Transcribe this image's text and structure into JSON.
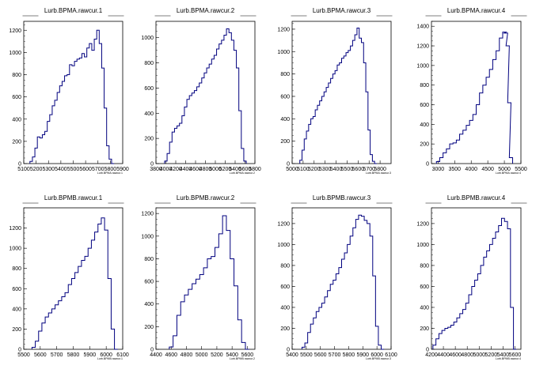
{
  "chart_data": [
    {
      "type": "histogram",
      "title": "Lurb.BPMA.rawcur.1",
      "xlabel": "Lurb.BPMA.rawcur.1",
      "xlim": [
        5100,
        5900
      ],
      "ylim": [
        0,
        1280
      ],
      "xticks": [
        5100,
        5200,
        5300,
        5400,
        5500,
        5600,
        5700,
        5800,
        5900
      ],
      "xtick_labels": [
        "5100",
        "5200",
        "5300",
        "5400",
        "5500",
        "5600",
        "5700",
        "5800",
        "5900"
      ],
      "yticks": [
        0,
        200,
        400,
        600,
        800,
        1000,
        1200
      ],
      "x": [
        5160,
        5180,
        5200,
        5220,
        5240,
        5260,
        5280,
        5300,
        5320,
        5340,
        5360,
        5380,
        5400,
        5420,
        5440,
        5460,
        5480,
        5500,
        5520,
        5540,
        5560,
        5580,
        5600,
        5620,
        5640,
        5660,
        5680,
        5700,
        5720,
        5740,
        5760,
        5780,
        5800,
        5820
      ],
      "values": [
        20,
        60,
        140,
        240,
        230,
        260,
        290,
        380,
        440,
        520,
        570,
        640,
        700,
        740,
        790,
        800,
        890,
        880,
        920,
        940,
        950,
        990,
        960,
        1040,
        1080,
        1020,
        1120,
        1200,
        1080,
        860,
        500,
        160,
        40,
        0
      ]
    },
    {
      "type": "histogram",
      "title": "Lurb.BPMA.rawcur.2",
      "xlabel": "Lurb.BPMA.rawcur.2",
      "xlim": [
        3800,
        5800
      ],
      "ylim": [
        0,
        1130
      ],
      "xticks": [
        3800,
        4000,
        4200,
        4400,
        4600,
        4800,
        5000,
        5200,
        5400,
        5600,
        5800
      ],
      "xtick_labels": [
        "3800",
        "4000",
        "4200",
        "4400",
        "4600",
        "4800",
        "5000",
        "5200",
        "5400",
        "5600",
        "5800"
      ],
      "yticks": [
        0,
        200,
        400,
        600,
        800,
        1000
      ],
      "x": [
        4000,
        4050,
        4100,
        4150,
        4200,
        4250,
        4300,
        4350,
        4400,
        4450,
        4500,
        4550,
        4600,
        4650,
        4700,
        4750,
        4800,
        4850,
        4900,
        4950,
        5000,
        5050,
        5100,
        5150,
        5200,
        5250,
        5300,
        5350,
        5400,
        5450,
        5500,
        5550,
        5600
      ],
      "values": [
        20,
        80,
        170,
        250,
        280,
        300,
        320,
        380,
        450,
        510,
        540,
        560,
        580,
        610,
        640,
        680,
        720,
        760,
        790,
        830,
        860,
        910,
        950,
        980,
        1020,
        1070,
        1040,
        980,
        900,
        760,
        420,
        120,
        20
      ]
    },
    {
      "type": "histogram",
      "title": "Lurb.BPMA.rawcur.3",
      "xlabel": "Lurb.BPMA.rawcur.3",
      "xlim": [
        5000,
        5900
      ],
      "ylim": [
        0,
        1270
      ],
      "xticks": [
        5000,
        5100,
        5200,
        5300,
        5400,
        5500,
        5600,
        5700,
        5800
      ],
      "xtick_labels": [
        "5000",
        "5100",
        "5200",
        "5300",
        "5400",
        "5500",
        "5600",
        "5700",
        "5800"
      ],
      "yticks": [
        0,
        200,
        400,
        600,
        800,
        1000,
        1200
      ],
      "x": [
        5080,
        5100,
        5120,
        5140,
        5160,
        5180,
        5200,
        5220,
        5240,
        5260,
        5280,
        5300,
        5320,
        5340,
        5360,
        5380,
        5400,
        5420,
        5440,
        5460,
        5480,
        5500,
        5520,
        5540,
        5560,
        5580,
        5600,
        5620,
        5640,
        5660,
        5680,
        5700,
        5720,
        5740,
        5760
      ],
      "values": [
        30,
        120,
        220,
        290,
        350,
        400,
        420,
        480,
        520,
        560,
        600,
        640,
        680,
        720,
        760,
        800,
        830,
        880,
        900,
        940,
        960,
        990,
        1010,
        1050,
        1100,
        1150,
        1210,
        1120,
        1080,
        900,
        640,
        300,
        80,
        20,
        0
      ]
    },
    {
      "type": "histogram",
      "title": "Lurb.BPMA.rawcur.4",
      "xlabel": "Lurb.BPMA.rawcur.4",
      "xlim": [
        2800,
        5500
      ],
      "ylim": [
        0,
        1450
      ],
      "xticks": [
        3000,
        3500,
        4000,
        4500,
        5000,
        5500
      ],
      "xtick_labels": [
        "3000",
        "3500",
        "4000",
        "4500",
        "5000",
        "5500"
      ],
      "yticks": [
        0,
        200,
        400,
        600,
        800,
        1000,
        1200,
        1400
      ],
      "x": [
        3000,
        3100,
        3200,
        3300,
        3400,
        3500,
        3600,
        3700,
        3800,
        3900,
        4000,
        4100,
        4200,
        4300,
        4400,
        4500,
        4600,
        4700,
        4800,
        4900,
        5000,
        5050,
        5100,
        5150,
        5200
      ],
      "values": [
        20,
        60,
        110,
        150,
        200,
        210,
        240,
        300,
        340,
        390,
        440,
        500,
        600,
        720,
        800,
        880,
        960,
        1060,
        1150,
        1280,
        1340,
        1330,
        1200,
        620,
        60
      ]
    },
    {
      "type": "histogram",
      "title": "Lurb.BPMB.rawcur.1",
      "xlabel": "Lurb.BPMB.rawcur.1",
      "xlim": [
        5500,
        6100
      ],
      "ylim": [
        0,
        1400
      ],
      "xticks": [
        5500,
        5600,
        5700,
        5800,
        5900,
        6000,
        6100
      ],
      "xtick_labels": [
        "5500",
        "5600",
        "5700",
        "5800",
        "5900",
        "6000",
        "6100"
      ],
      "yticks": [
        0,
        200,
        400,
        600,
        800,
        1000,
        1200
      ],
      "x": [
        5560,
        5580,
        5600,
        5620,
        5640,
        5660,
        5680,
        5700,
        5720,
        5740,
        5760,
        5780,
        5800,
        5820,
        5840,
        5860,
        5880,
        5900,
        5920,
        5940,
        5960,
        5980,
        6000,
        6020,
        6040,
        6060
      ],
      "values": [
        20,
        80,
        180,
        260,
        320,
        360,
        400,
        440,
        480,
        520,
        560,
        640,
        700,
        760,
        820,
        880,
        920,
        1000,
        1080,
        1160,
        1240,
        1300,
        1180,
        700,
        200,
        0
      ]
    },
    {
      "type": "histogram",
      "title": "Lurb.BPMB.rawcur.2",
      "xlabel": "Lurb.BPMB.rawcur.2",
      "xlim": [
        4400,
        5700
      ],
      "ylim": [
        0,
        1250
      ],
      "xticks": [
        4400,
        4600,
        4800,
        5000,
        5200,
        5400,
        5600
      ],
      "xtick_labels": [
        "4400",
        "4600",
        "4800",
        "5000",
        "5200",
        "5400",
        "5600"
      ],
      "yticks": [
        0,
        200,
        400,
        600,
        800,
        1000,
        1200
      ],
      "x": [
        4600,
        4650,
        4700,
        4750,
        4800,
        4850,
        4900,
        4950,
        5000,
        5050,
        5100,
        5150,
        5200,
        5250,
        5300,
        5350,
        5400,
        5450,
        5500,
        5550,
        5600
      ],
      "values": [
        20,
        120,
        300,
        420,
        480,
        530,
        580,
        620,
        660,
        720,
        800,
        820,
        900,
        1020,
        1180,
        1050,
        800,
        560,
        260,
        60,
        0
      ]
    },
    {
      "type": "histogram",
      "title": "Lurb.BPMB.rawcur.3",
      "xlabel": "Lurb.BPMB.rawcur.3",
      "xlim": [
        5400,
        6100
      ],
      "ylim": [
        0,
        1350
      ],
      "xticks": [
        5400,
        5500,
        5600,
        5700,
        5800,
        5900,
        6000,
        6100
      ],
      "xtick_labels": [
        "5400",
        "5500",
        "5600",
        "5700",
        "5800",
        "5900",
        "6000",
        "6100"
      ],
      "yticks": [
        0,
        200,
        400,
        600,
        800,
        1000,
        1200
      ],
      "x": [
        5480,
        5500,
        5520,
        5540,
        5560,
        5580,
        5600,
        5620,
        5640,
        5660,
        5680,
        5700,
        5720,
        5740,
        5760,
        5780,
        5800,
        5820,
        5840,
        5860,
        5880,
        5900,
        5920,
        5940,
        5960,
        5980,
        6000,
        6020,
        6040
      ],
      "values": [
        20,
        60,
        160,
        240,
        300,
        360,
        400,
        440,
        500,
        560,
        620,
        660,
        720,
        780,
        860,
        920,
        1000,
        1080,
        1160,
        1240,
        1280,
        1270,
        1230,
        1200,
        1080,
        700,
        220,
        40,
        0
      ]
    },
    {
      "type": "histogram",
      "title": "Lurb.BPMB.rawcur.4",
      "xlabel": "Lurb.BPMB.rawcur.4",
      "xlim": [
        4200,
        5700
      ],
      "ylim": [
        0,
        1350
      ],
      "xticks": [
        4200,
        4400,
        4600,
        4800,
        5000,
        5200,
        5400,
        5600
      ],
      "xtick_labels": [
        "4200",
        "4400",
        "4600",
        "4800",
        "5000",
        "5200",
        "5400",
        "5600"
      ],
      "yticks": [
        0,
        200,
        400,
        600,
        800,
        1000,
        1200
      ],
      "x": [
        4250,
        4300,
        4350,
        4400,
        4450,
        4500,
        4550,
        4600,
        4650,
        4700,
        4750,
        4800,
        4850,
        4900,
        4950,
        5000,
        5050,
        5100,
        5150,
        5200,
        5250,
        5300,
        5350,
        5400,
        5450,
        5500,
        5550,
        5600
      ],
      "values": [
        40,
        100,
        150,
        180,
        200,
        210,
        230,
        260,
        300,
        340,
        380,
        440,
        520,
        600,
        660,
        720,
        800,
        880,
        940,
        1000,
        1060,
        1120,
        1180,
        1250,
        1220,
        1150,
        400,
        0
      ]
    }
  ],
  "colors": {
    "line": "#00007f",
    "axis": "#000000",
    "background": "#ffffff"
  }
}
